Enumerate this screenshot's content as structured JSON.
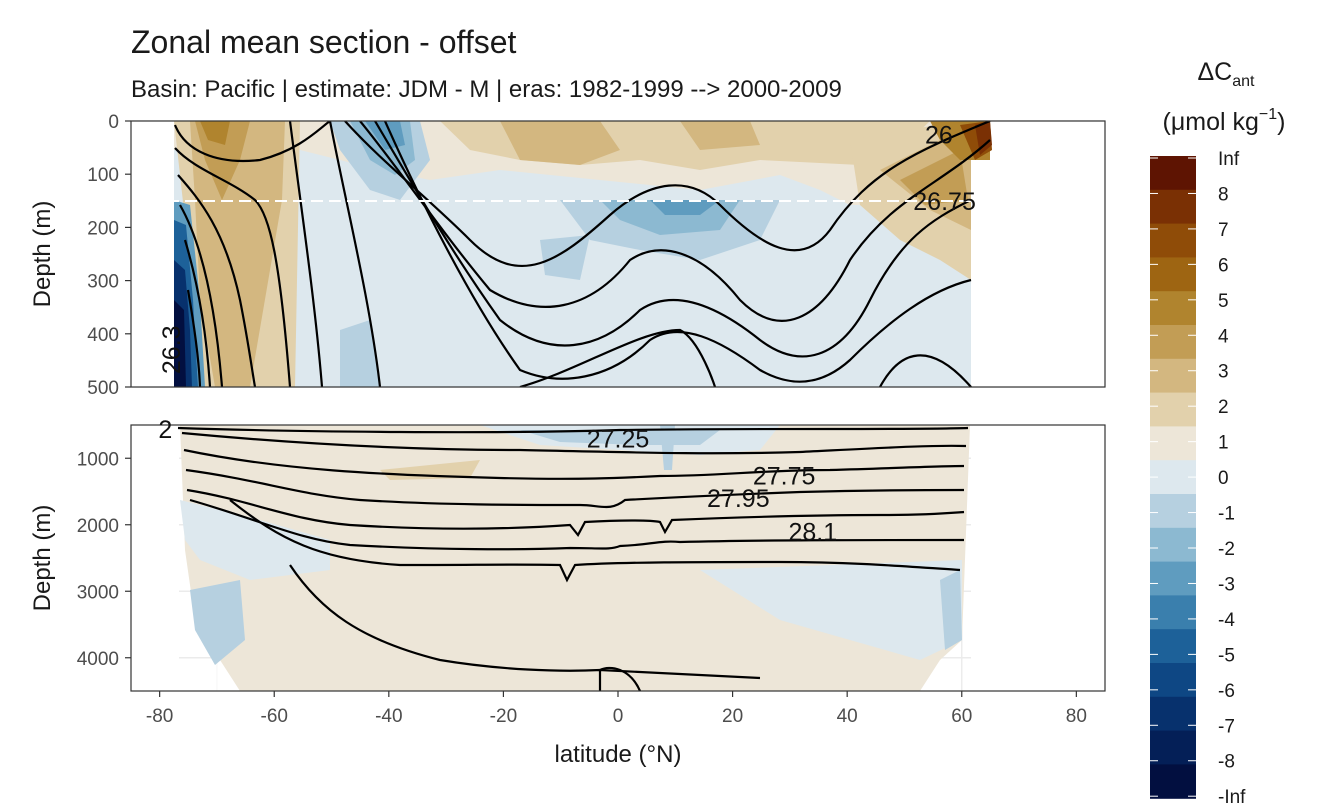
{
  "title": "Zonal mean section - offset",
  "subtitle": "Basin: Pacific | estimate: JDM - M | eras: 1982-1999 --> 2000-2009",
  "chart_data": {
    "type": "heatmap",
    "x_label": "latitude (°N)",
    "x_ticks": [
      -80,
      -60,
      -40,
      -20,
      0,
      20,
      40,
      60,
      80
    ],
    "xlim": [
      -85,
      85
    ],
    "panels": [
      {
        "name": "upper",
        "y_label": "Depth (m)",
        "y_ticks": [
          0,
          100,
          200,
          300,
          400,
          500
        ],
        "ylim": [
          0,
          500
        ],
        "reference_line_depth": 150
      },
      {
        "name": "lower",
        "y_label": "Depth (m)",
        "y_ticks": [
          1000,
          2000,
          3000,
          4000
        ],
        "ylim": [
          500,
          4500
        ]
      }
    ],
    "contour_labels": [
      {
        "text": "26",
        "lat": 56,
        "depth": 25
      },
      {
        "text": "26.75",
        "lat": 57,
        "depth": 150
      },
      {
        "text": "26.3",
        "lat": -78,
        "depth": 430
      },
      {
        "text": "27.25",
        "lat": 0,
        "depth": 700
      },
      {
        "text": "27.75",
        "lat": 29,
        "depth": 1260
      },
      {
        "text": "27.95",
        "lat": 21,
        "depth": 1600
      },
      {
        "text": "28.1",
        "lat": 34,
        "depth": 2100
      },
      {
        "text": "2",
        "lat": -79,
        "depth": 560
      }
    ],
    "legend": {
      "title_main": "ΔC",
      "title_sub": "ant",
      "unit_main": "(μmol kg",
      "unit_sup": "−1",
      "unit_end": ")",
      "labels": [
        "Inf",
        "8",
        "7",
        "6",
        "5",
        "4",
        "3",
        "2",
        "1",
        "0",
        "-1",
        "-2",
        "-3",
        "-4",
        "-5",
        "-6",
        "-7",
        "-8",
        "-Inf"
      ],
      "colors": [
        "#5e1402",
        "#7a3004",
        "#8f4c08",
        "#9e6512",
        "#b0842e",
        "#c29d55",
        "#d3b780",
        "#e2d1ac",
        "#ede6d8",
        "#dde8ee",
        "#b6d0e0",
        "#8cb9d1",
        "#5f9cbf",
        "#3a7fad",
        "#1d6199",
        "#0e4784",
        "#07316d",
        "#041f57",
        "#020f40"
      ]
    }
  }
}
